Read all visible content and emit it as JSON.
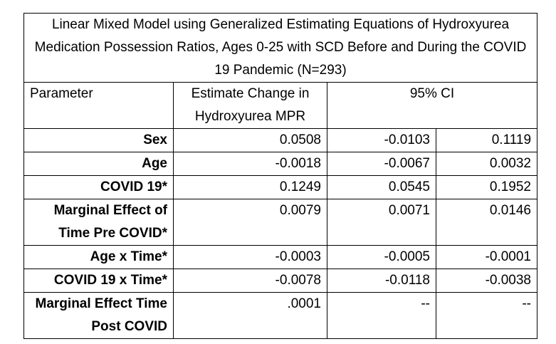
{
  "table": {
    "title": "Linear Mixed Model using Generalized Estimating Equations of Hydroxyurea Medication Possession Ratios, Ages 0-25 with SCD Before and During the COVID 19 Pandemic (N=293)",
    "headers": {
      "parameter": "Parameter",
      "estimate": "Estimate Change in Hydroxyurea MPR",
      "ci": "95% CI"
    },
    "rows": [
      {
        "label": "Sex",
        "estimate": "0.0508",
        "ci_low": "-0.0103",
        "ci_high": "0.1119"
      },
      {
        "label": "Age",
        "estimate": "-0.0018",
        "ci_low": "-0.0067",
        "ci_high": "0.0032"
      },
      {
        "label": "COVID 19*",
        "estimate": "0.1249",
        "ci_low": "0.0545",
        "ci_high": "0.1952"
      },
      {
        "label": "Marginal Effect of Time Pre COVID*",
        "estimate": "0.0079",
        "ci_low": "0.0071",
        "ci_high": "0.0146"
      },
      {
        "label": "Age x Time*",
        "estimate": "-0.0003",
        "ci_low": "-0.0005",
        "ci_high": "-0.0001"
      },
      {
        "label": "COVID 19 x Time*",
        "estimate": "-0.0078",
        "ci_low": "-0.0118",
        "ci_high": "-0.0038"
      },
      {
        "label": "Marginal Effect Time Post COVID",
        "estimate": ".0001",
        "ci_low": "--",
        "ci_high": "--"
      }
    ]
  }
}
